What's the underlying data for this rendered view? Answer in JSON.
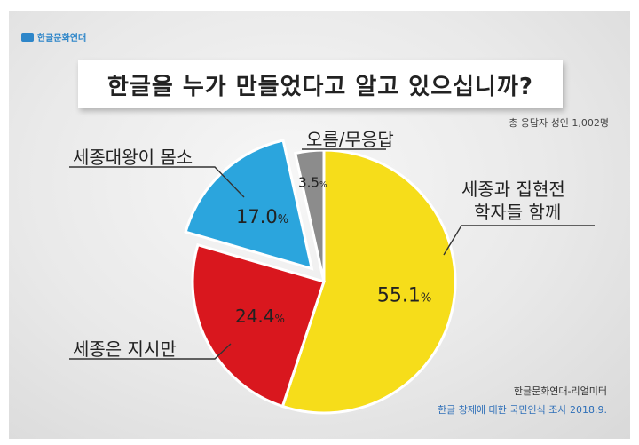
{
  "header": {
    "logo_text": "한글문화연대"
  },
  "chart_data": {
    "type": "pie",
    "title": "한글을 누가 만들었다고 알고 있으십니까?",
    "respondents": "총 응답자 성인 1,002명",
    "slices": [
      {
        "label": "세종과 집현전 학자들 함께",
        "label_lines": [
          "세종과 집현전",
          "학자들 함께"
        ],
        "value": 55.1,
        "value_text": "55.1",
        "color": "#f6dd1a",
        "exploded": false
      },
      {
        "label": "세종은 지시만",
        "label_lines": [
          "세종은 지시만"
        ],
        "value": 24.4,
        "value_text": "24.4",
        "color": "#d9171e",
        "exploded": false
      },
      {
        "label": "세종대왕이 몸소",
        "label_lines": [
          "세종대왕이 몸소"
        ],
        "value": 17.0,
        "value_text": "17.0",
        "color": "#2ba5dd",
        "exploded": true
      },
      {
        "label": "오름/무응답",
        "label_lines": [
          "오름/무응답"
        ],
        "value": 3.5,
        "value_text": "3.5",
        "color": "#8c8c8c",
        "exploded": false
      }
    ],
    "unit": "%"
  },
  "footer": {
    "source_line1": "한글문화연대-리얼미터",
    "source_line2": "한글 창제에 대한 국민인식 조사 2018.9."
  }
}
